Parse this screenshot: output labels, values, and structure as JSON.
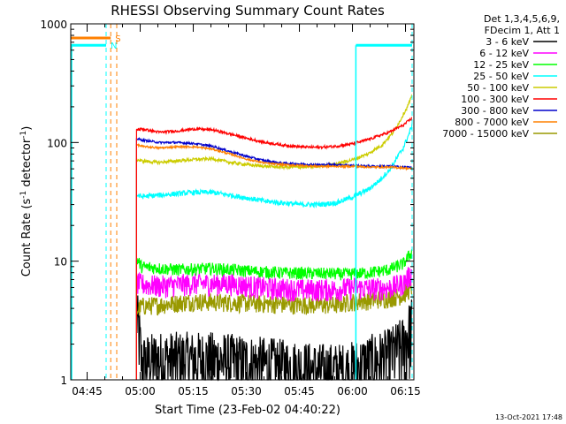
{
  "chart_data": {
    "type": "line",
    "title": "RHESSI Observing Summary Count Rates",
    "xlabel": "Start Time (23-Feb-02 04:40:22)",
    "ylabel": "Count Rate (s⁻¹ detector⁻¹)",
    "ylabel_parts": {
      "main": "Count Rate (s",
      "exp1": "-1",
      "mid": " detector",
      "exp2": "-1",
      "end": ")"
    },
    "y_scale": "log",
    "ylim": [
      1,
      1000
    ],
    "xlim_minutes": [
      0,
      97
    ],
    "x_ticks": [
      {
        "label": "04:45",
        "minute": 4.63
      },
      {
        "label": "05:00",
        "minute": 19.63
      },
      {
        "label": "05:15",
        "minute": 34.63
      },
      {
        "label": "05:30",
        "minute": 49.63
      },
      {
        "label": "05:45",
        "minute": 64.63
      },
      {
        "label": "06:00",
        "minute": 79.63
      },
      {
        "label": "06:15",
        "minute": 94.63
      }
    ],
    "y_ticks": [
      {
        "label": "1",
        "value": 1
      },
      {
        "label": "10",
        "value": 10
      },
      {
        "label": "100",
        "value": 100
      },
      {
        "label": "1000",
        "value": 1000
      }
    ],
    "legend_header": [
      "Det 1,3,4,5,6,9,",
      "FDecim 1, Att 1"
    ],
    "series": [
      {
        "name": "3 - 6 keV",
        "color": "#000000",
        "x": [
          18.6,
          20,
          25,
          30,
          40,
          50,
          60,
          70,
          78,
          84,
          90,
          94,
          96.5
        ],
        "y": [
          3.6,
          1.4,
          1.5,
          1.5,
          1.5,
          1.4,
          1.3,
          1.2,
          1.2,
          1.4,
          1.6,
          2.0,
          3.0
        ]
      },
      {
        "name": "6 - 12 keV",
        "color": "#ff00ff",
        "x": [
          18.6,
          25,
          35,
          45,
          55,
          65,
          75,
          80,
          85,
          90,
          94,
          96.5
        ],
        "y": [
          6.5,
          6.2,
          6.5,
          6.5,
          6.0,
          5.8,
          5.8,
          6.0,
          5.9,
          6.0,
          6.5,
          8.0
        ]
      },
      {
        "name": "12 - 25 keV",
        "color": "#00ff00",
        "x": [
          18.6,
          20,
          30,
          40,
          50,
          60,
          70,
          78,
          84,
          90,
          94,
          96.5
        ],
        "y": [
          10.5,
          9.0,
          8.5,
          8.7,
          8.3,
          8.0,
          7.9,
          7.8,
          8.0,
          8.5,
          9.5,
          12.0
        ]
      },
      {
        "name": "25 - 50 keV",
        "color": "#00ffff",
        "x": [
          18.6,
          20,
          25,
          30,
          35,
          40,
          45,
          50,
          55,
          60,
          65,
          70,
          75,
          80,
          84,
          87,
          90,
          92,
          94,
          95.5,
          96.5
        ],
        "y": [
          36,
          35,
          36,
          37,
          38,
          38,
          36,
          34,
          32,
          31,
          30,
          30,
          31,
          35,
          40,
          47,
          58,
          72,
          90,
          115,
          140
        ]
      },
      {
        "name": "50 - 100 keV",
        "color": "#cccc00",
        "x": [
          18.6,
          20,
          25,
          30,
          35,
          40,
          45,
          50,
          55,
          60,
          65,
          70,
          75,
          80,
          84,
          88,
          91,
          93,
          95,
          96.5
        ],
        "y": [
          72,
          70,
          68,
          70,
          72,
          73,
          68,
          65,
          63,
          62,
          62,
          63,
          66,
          72,
          80,
          95,
          120,
          150,
          195,
          245
        ]
      },
      {
        "name": "100 - 300 keV",
        "color": "#ff0000",
        "x": [
          18.6,
          20,
          25,
          30,
          35,
          40,
          45,
          50,
          55,
          60,
          65,
          70,
          75,
          80,
          85,
          90,
          94,
          96.5
        ],
        "y": [
          128,
          130,
          122,
          125,
          130,
          128,
          118,
          108,
          100,
          95,
          92,
          91,
          93,
          98,
          108,
          122,
          140,
          160
        ]
      },
      {
        "name": "300 - 800 keV",
        "color": "#0000cc",
        "x": [
          18.6,
          20,
          25,
          30,
          35,
          40,
          45,
          50,
          55,
          60,
          65,
          70,
          75,
          80,
          85,
          90,
          94,
          96.5
        ],
        "y": [
          108,
          105,
          100,
          100,
          98,
          93,
          84,
          76,
          70,
          67,
          66,
          65,
          65,
          64,
          63,
          63,
          62,
          62
        ]
      },
      {
        "name": "800 - 7000 keV",
        "color": "#ff8000",
        "x": [
          18.6,
          20,
          25,
          30,
          35,
          40,
          45,
          50,
          55,
          60,
          65,
          70,
          75,
          80,
          85,
          90,
          94,
          96.5
        ],
        "y": [
          96,
          93,
          90,
          92,
          92,
          88,
          80,
          72,
          67,
          65,
          64,
          63,
          63,
          63,
          62,
          62,
          61,
          60
        ]
      },
      {
        "name": "7000 - 15000 keV",
        "color": "#999900",
        "x": [
          18.6,
          20,
          25,
          35,
          45,
          55,
          65,
          75,
          80,
          85,
          90,
          94,
          96.5
        ],
        "y": [
          3.8,
          4.2,
          4.3,
          4.6,
          4.5,
          4.4,
          4.3,
          4.3,
          4.6,
          4.7,
          4.9,
          5.2,
          6.0
        ]
      }
    ],
    "markers": [
      {
        "label": "N",
        "color": "#00ffff",
        "level": 660,
        "x_start": 0,
        "x_end": 10.0,
        "dashed_at": 10.0
      },
      {
        "label": "S",
        "color": "#ff8000",
        "level": 760,
        "x_start": 0,
        "x_end": 11.3,
        "dashed_at": 11.3
      },
      {
        "label": "",
        "color": "#ff8000",
        "level": null,
        "x_start": null,
        "x_end": null,
        "dashed_at": 13.0
      },
      {
        "label": "",
        "color": "#00ffff",
        "level": 660,
        "x_start": 80.6,
        "x_end": 96.5,
        "dashed_at": 96.5
      }
    ],
    "saa_interval_line": {
      "color": "#00ffff",
      "x": [
        0.0,
        80.6
      ]
    },
    "footer_date": "13-Oct-2021 17:48"
  }
}
